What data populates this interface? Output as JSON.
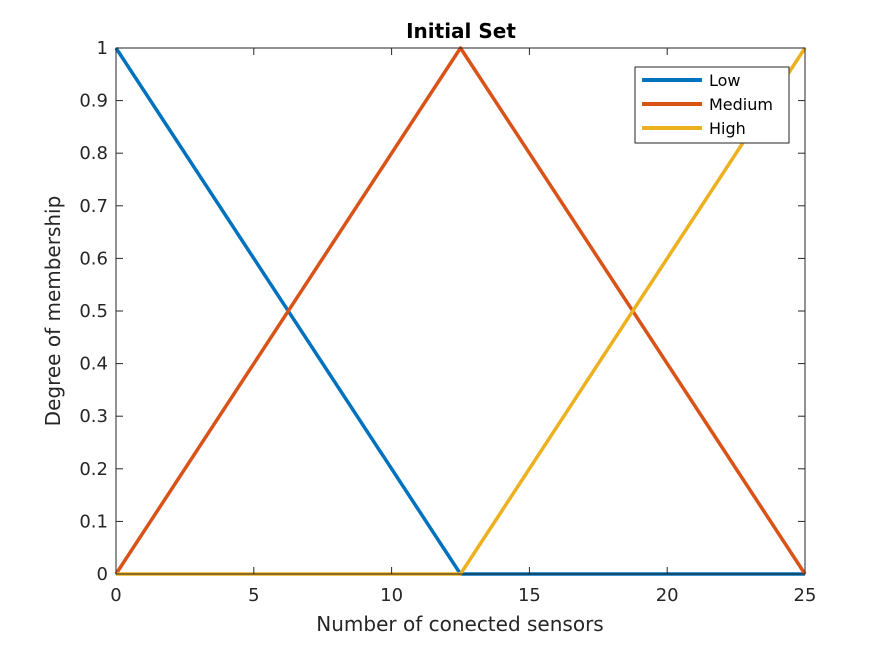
{
  "chart_data": {
    "type": "line",
    "title": "Initial Set",
    "xlabel": "Number of conected sensors",
    "ylabel": "Degree of membership",
    "xlim": [
      0,
      25
    ],
    "ylim": [
      0,
      1
    ],
    "xticks": [
      "0",
      "5",
      "10",
      "15",
      "20",
      "25"
    ],
    "yticks": [
      "0",
      "0.1",
      "0.2",
      "0.3",
      "0.4",
      "0.5",
      "0.6",
      "0.7",
      "0.8",
      "0.9",
      "1"
    ],
    "grid": false,
    "legend_position": "top-right",
    "series": [
      {
        "name": "Low",
        "color": "#0072BD",
        "x": [
          0,
          12.5,
          25
        ],
        "y": [
          1,
          0,
          0
        ]
      },
      {
        "name": "Medium",
        "color": "#D95319",
        "x": [
          0,
          12.5,
          25
        ],
        "y": [
          0,
          1,
          0
        ]
      },
      {
        "name": "High",
        "color": "#EDB120",
        "x": [
          0,
          12.5,
          25
        ],
        "y": [
          0,
          0,
          1
        ]
      }
    ]
  }
}
